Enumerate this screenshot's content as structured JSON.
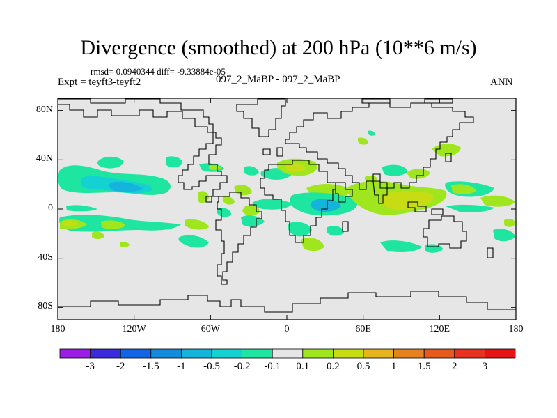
{
  "title": "Divergence (smoothed) at 200 hPa (10**6 m/s)",
  "stats": "rmsd= 0.0940344 diff= -9.33884e-05",
  "expt": "Expt = teyft3-teyft2",
  "case": "097_2_MaBP - 097_2_MaBP",
  "season": "ANN",
  "map": {
    "projection": "cylindrical-equidistant",
    "lon_range": [
      -180,
      180
    ],
    "lat_range": [
      -90,
      90
    ],
    "lat_ticks": [
      {
        "lat": 80,
        "label": "80N"
      },
      {
        "lat": 40,
        "label": "40N"
      },
      {
        "lat": 0,
        "label": "0"
      },
      {
        "lat": -40,
        "label": "40S"
      },
      {
        "lat": -80,
        "label": "80S"
      }
    ],
    "lon_ticks": [
      {
        "lon": -180,
        "label": "180"
      },
      {
        "lon": -120,
        "label": "120W"
      },
      {
        "lon": -60,
        "label": "60W"
      },
      {
        "lon": 0,
        "label": "0"
      },
      {
        "lon": 60,
        "label": "60E"
      },
      {
        "lon": 120,
        "label": "120E"
      },
      {
        "lon": 180,
        "label": "180"
      }
    ]
  },
  "colorbar": {
    "labels": [
      "-3",
      "-2",
      "-1.5",
      "-1",
      "-0.5",
      "-0.2",
      "-0.1",
      "0.1",
      "0.2",
      "0.5",
      "1",
      "1.5",
      "2",
      "3"
    ],
    "colors": [
      "#9a1ee6",
      "#3b2bdc",
      "#1464e6",
      "#148cdc",
      "#14b4dc",
      "#14d2d2",
      "#1ee6a0",
      "#e6e6e6",
      "#a0e61e",
      "#c8dc14",
      "#e6b41e",
      "#e6821e",
      "#e65a1e",
      "#e6321e",
      "#e61414"
    ],
    "zero_band_color": "#e6e6e6"
  }
}
